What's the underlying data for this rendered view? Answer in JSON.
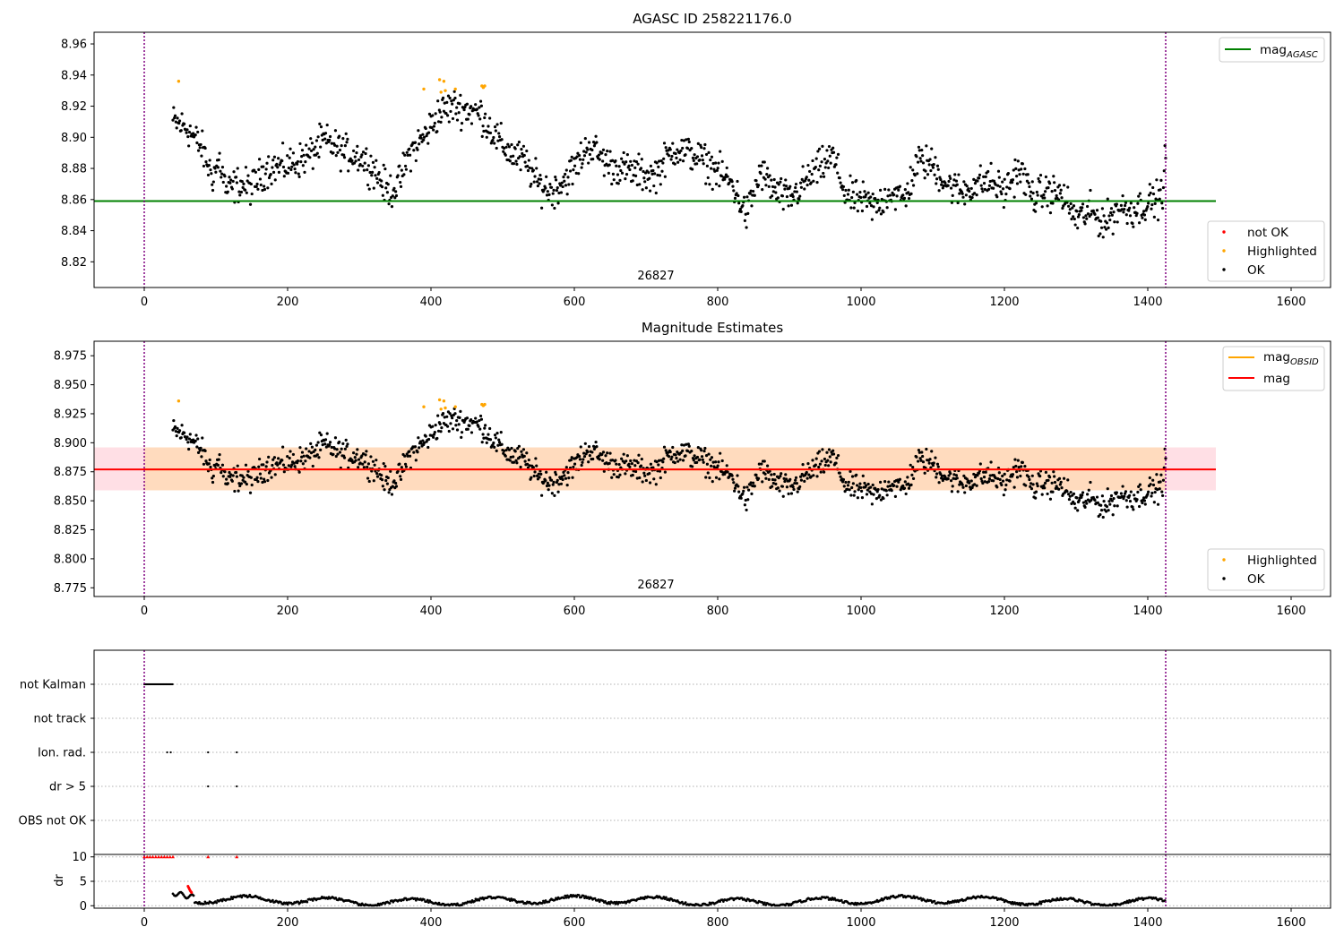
{
  "chart_data": [
    {
      "type": "scatter",
      "title": "AGASC ID 258221176.0",
      "annotation": "26827",
      "xlim": [
        -70,
        1655
      ],
      "ylim": [
        8.8035,
        8.9675
      ],
      "xticks": [
        0,
        200,
        400,
        600,
        800,
        1000,
        1200,
        1400,
        1600
      ],
      "yticks": [
        8.82,
        8.84,
        8.86,
        8.88,
        8.9,
        8.92,
        8.94,
        8.96
      ],
      "vlines": [
        0,
        1425
      ],
      "hline": {
        "name": "mag_AGASC",
        "label": "mag",
        "subscript": "AGASC",
        "y": 8.859,
        "x": [
          -70,
          1495
        ],
        "color": "#008000"
      },
      "series": [
        {
          "name": "not OK",
          "color": "#ff0000",
          "x": [],
          "y": []
        },
        {
          "name": "Highlighted",
          "color": "#ffa500",
          "x": [
            48,
            390,
            412,
            414,
            418,
            420,
            434,
            471,
            473,
            475
          ],
          "y": [
            8.936,
            8.931,
            8.937,
            8.929,
            8.936,
            8.93,
            8.931,
            8.933,
            8.932,
            8.933
          ]
        },
        {
          "name": "OK",
          "color": "#000000",
          "x": [],
          "y": []
        }
      ],
      "ok_profile": {
        "x": [
          40,
          60,
          80,
          95,
          105,
          115,
          130,
          150,
          170,
          200,
          230,
          250,
          280,
          300,
          320,
          340,
          355,
          370,
          390,
          410,
          430,
          450,
          470,
          490,
          510,
          530,
          550,
          570,
          600,
          620,
          650,
          680,
          710,
          740,
          770,
          800,
          820,
          840,
          860,
          880,
          900,
          930,
          960,
          980,
          1000,
          1020,
          1040,
          1060,
          1080,
          1100,
          1120,
          1140,
          1160,
          1180,
          1200,
          1220,
          1240,
          1260,
          1280,
          1300,
          1320,
          1340,
          1360,
          1380,
          1400,
          1420,
          1425
        ],
        "y": [
          8.91,
          8.906,
          8.893,
          8.875,
          8.885,
          8.865,
          8.87,
          8.868,
          8.88,
          8.882,
          8.888,
          8.898,
          8.89,
          8.888,
          8.88,
          8.865,
          8.87,
          8.89,
          8.9,
          8.915,
          8.92,
          8.918,
          8.915,
          8.9,
          8.89,
          8.885,
          8.87,
          8.865,
          8.88,
          8.895,
          8.882,
          8.878,
          8.875,
          8.893,
          8.888,
          8.878,
          8.87,
          8.85,
          8.878,
          8.865,
          8.86,
          8.875,
          8.888,
          8.862,
          8.86,
          8.855,
          8.865,
          8.86,
          8.885,
          8.882,
          8.87,
          8.865,
          8.87,
          8.872,
          8.865,
          8.88,
          8.862,
          8.865,
          8.863,
          8.848,
          8.852,
          8.845,
          8.855,
          8.853,
          8.858,
          8.862,
          8.89
        ]
      },
      "legends": [
        {
          "position": "upper right",
          "entries": [
            "mag_AGASC"
          ]
        },
        {
          "position": "lower right",
          "entries": [
            "not OK",
            "Highlighted",
            "OK"
          ]
        }
      ]
    },
    {
      "type": "scatter",
      "title": "Magnitude Estimates",
      "annotation": "26827",
      "xlim": [
        -70,
        1655
      ],
      "ylim": [
        8.7675,
        8.9875
      ],
      "xticks": [
        0,
        200,
        400,
        600,
        800,
        1000,
        1200,
        1400,
        1600
      ],
      "yticks": [
        8.775,
        8.8,
        8.825,
        8.85,
        8.875,
        8.9,
        8.925,
        8.95,
        8.975
      ],
      "vlines": [
        0,
        1425
      ],
      "band_pink": {
        "y": [
          8.859,
          8.896
        ],
        "x": [
          -70,
          1495
        ],
        "color": "#ffc0cb"
      },
      "band_orange": {
        "y": [
          8.859,
          8.896
        ],
        "x": [
          0,
          1425
        ],
        "color": "#ffdab9"
      },
      "hline_obsid": {
        "name": "mag_OBSID",
        "label": "mag",
        "subscript": "OBSID",
        "y": 8.877,
        "x": [
          0,
          1425
        ],
        "color": "#ffa500"
      },
      "hline_mag": {
        "name": "mag",
        "label": "mag",
        "y": 8.877,
        "x": [
          -70,
          1495
        ],
        "color": "#ff0000"
      },
      "series": [
        {
          "name": "Highlighted",
          "color": "#ffa500",
          "x": [
            48,
            390,
            412,
            414,
            418,
            420,
            434,
            471,
            473,
            475
          ],
          "y": [
            8.936,
            8.931,
            8.937,
            8.929,
            8.936,
            8.93,
            8.931,
            8.933,
            8.932,
            8.933
          ]
        },
        {
          "name": "OK",
          "color": "#000000"
        }
      ],
      "legends": [
        {
          "position": "upper right",
          "entries": [
            "mag_OBSID",
            "mag"
          ]
        },
        {
          "position": "lower right",
          "entries": [
            "Highlighted",
            "OK"
          ]
        }
      ]
    },
    {
      "type": "scatter",
      "xlim": [
        -70,
        1655
      ],
      "vlines": [
        0,
        1425
      ],
      "categories": [
        "not Kalman",
        "not track",
        "Ion. rad.",
        "dr > 5",
        "OBS not OK"
      ],
      "flags": {
        "not Kalman": {
          "x_range": [
            0,
            40
          ]
        },
        "not track": {
          "x": []
        },
        "Ion. rad.": {
          "x": [
            32,
            37,
            89,
            129
          ]
        },
        "dr > 5": {
          "x": [
            89,
            129
          ]
        },
        "OBS not OK": {
          "x": []
        }
      }
    },
    {
      "type": "scatter",
      "ylabel": "dr",
      "xlim": [
        -70,
        1655
      ],
      "ylim": [
        -0.5,
        10.5
      ],
      "yticks": [
        0,
        5,
        10
      ],
      "xticks": [
        0,
        200,
        400,
        600,
        800,
        1000,
        1200,
        1400,
        1600
      ],
      "vlines": [
        0,
        1425
      ],
      "clipped_red_x": [
        0,
        4,
        8,
        12,
        16,
        20,
        24,
        28,
        32,
        36,
        40,
        89,
        129
      ],
      "red_dr": {
        "x": [
          61,
          62,
          63,
          64,
          65,
          66
        ],
        "y": [
          4.0,
          3.7,
          3.4,
          3.1,
          2.9,
          2.7
        ]
      },
      "black_dr": {
        "x": [
          40,
          1425
        ],
        "y": [
          0,
          2.6
        ]
      }
    }
  ]
}
